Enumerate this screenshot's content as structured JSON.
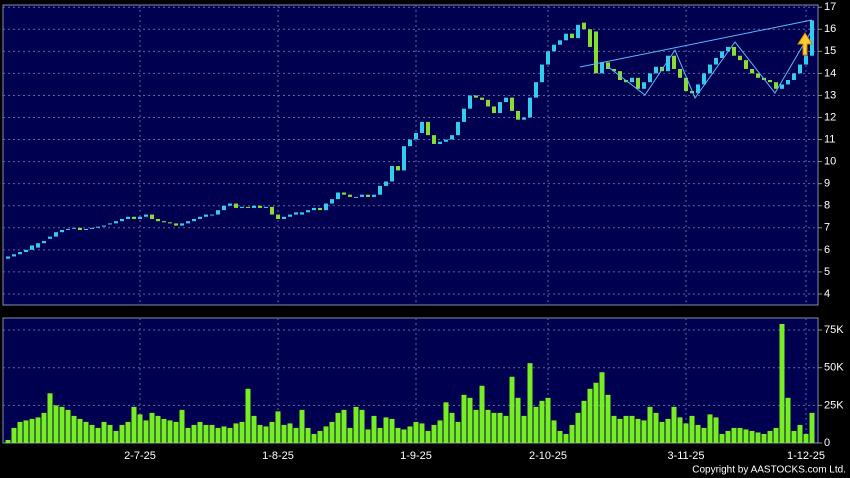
{
  "chart_data": [
    {
      "type": "candlestick",
      "categories": [
        null,
        null,
        null,
        null,
        null,
        null,
        null,
        null,
        null,
        null,
        null,
        null,
        null,
        null,
        null,
        null,
        null,
        null,
        null,
        null,
        null,
        null,
        "2-7-25",
        null,
        null,
        null,
        null,
        null,
        null,
        null,
        null,
        null,
        null,
        null,
        null,
        null,
        null,
        null,
        null,
        null,
        null,
        null,
        null,
        null,
        null,
        "1-8-25",
        null,
        null,
        null,
        null,
        null,
        null,
        null,
        null,
        null,
        null,
        null,
        null,
        null,
        null,
        null,
        null,
        null,
        null,
        null,
        null,
        null,
        null,
        "1-9-25",
        null,
        null,
        null,
        null,
        null,
        null,
        null,
        null,
        null,
        null,
        null,
        null,
        null,
        null,
        null,
        null,
        null,
        null,
        null,
        null,
        null,
        "2-10-25",
        null,
        null,
        null,
        null,
        null,
        null,
        null,
        null,
        null,
        null,
        null,
        null,
        null,
        null,
        null,
        null,
        null,
        null,
        null,
        null,
        null,
        null,
        "3-11-25",
        null,
        null,
        null,
        null,
        null,
        null,
        null,
        null,
        null,
        null,
        null,
        null,
        null,
        null,
        null,
        null,
        null,
        null,
        null,
        "1-12-25",
        null
      ],
      "open": [
        5.6,
        5.7,
        5.8,
        5.9,
        6.0,
        6.1,
        6.3,
        6.5,
        6.6,
        6.8,
        6.9,
        7.0,
        7.0,
        6.9,
        6.95,
        7.0,
        7.05,
        7.15,
        7.2,
        7.3,
        7.4,
        7.5,
        7.4,
        7.5,
        7.6,
        7.4,
        7.3,
        7.25,
        7.2,
        7.1,
        7.2,
        7.3,
        7.4,
        7.5,
        7.6,
        7.6,
        7.8,
        8.0,
        8.1,
        7.9,
        7.95,
        7.9,
        8.0,
        7.9,
        7.95,
        7.6,
        7.4,
        7.5,
        7.6,
        7.6,
        7.7,
        7.8,
        7.9,
        7.8,
        8.1,
        8.3,
        8.6,
        8.5,
        8.4,
        8.4,
        8.5,
        8.4,
        8.5,
        8.9,
        9.1,
        9.8,
        9.6,
        10.7,
        11.0,
        11.3,
        11.8,
        11.2,
        10.8,
        10.9,
        11.0,
        11.2,
        11.8,
        12.4,
        13.0,
        12.9,
        12.8,
        12.5,
        12.2,
        12.7,
        12.9,
        12.3,
        11.9,
        12.0,
        12.9,
        13.6,
        14.4,
        15.0,
        15.3,
        15.5,
        15.8,
        15.6,
        16.3,
        16.0,
        15.9,
        14.0,
        14.5,
        14.2,
        14.1,
        13.7,
        13.6,
        13.8,
        13.3,
        13.6,
        14.0,
        14.3,
        14.1,
        14.8,
        14.2,
        13.8,
        13.2,
        13.1,
        13.5,
        14.0,
        14.4,
        14.7,
        15.0,
        15.2,
        14.8,
        14.6,
        14.2,
        14.0,
        13.8,
        13.7,
        13.6,
        13.3,
        13.5,
        13.7,
        14.0,
        14.4,
        14.8
      ],
      "close": [
        5.7,
        5.8,
        5.9,
        6.0,
        6.2,
        6.3,
        6.4,
        6.6,
        6.8,
        6.9,
        6.95,
        7.0,
        6.9,
        6.95,
        7.0,
        7.05,
        7.1,
        7.2,
        7.3,
        7.4,
        7.5,
        7.4,
        7.5,
        7.6,
        7.4,
        7.3,
        7.25,
        7.2,
        7.1,
        7.2,
        7.3,
        7.4,
        7.5,
        7.6,
        7.6,
        7.8,
        8.0,
        8.1,
        7.9,
        7.95,
        7.9,
        8.0,
        7.9,
        7.95,
        7.6,
        7.4,
        7.5,
        7.6,
        7.7,
        7.7,
        7.8,
        7.9,
        7.8,
        8.1,
        8.3,
        8.6,
        8.5,
        8.4,
        8.4,
        8.5,
        8.4,
        8.5,
        8.9,
        9.1,
        9.8,
        9.6,
        10.7,
        11.0,
        11.3,
        11.8,
        11.2,
        10.8,
        10.9,
        11.0,
        11.2,
        11.8,
        12.4,
        13.0,
        12.9,
        12.8,
        12.5,
        12.2,
        12.7,
        12.9,
        12.3,
        11.9,
        12.0,
        12.9,
        13.6,
        14.4,
        15.0,
        15.3,
        15.5,
        15.8,
        15.6,
        16.2,
        16.0,
        15.2,
        14.0,
        14.5,
        14.2,
        14.1,
        13.7,
        13.6,
        13.8,
        13.3,
        13.6,
        14.0,
        14.3,
        14.1,
        14.8,
        14.2,
        13.8,
        13.2,
        13.1,
        13.5,
        14.0,
        14.4,
        14.7,
        15.0,
        15.2,
        14.8,
        14.6,
        14.2,
        14.0,
        13.8,
        13.7,
        13.6,
        13.3,
        13.5,
        13.7,
        14.0,
        14.4,
        14.8,
        16.4
      ],
      "up_color": "#33ccee",
      "down_color": "#88dd33",
      "ylim": [
        3.5,
        17.1
      ],
      "yticks": [
        4,
        5,
        6,
        7,
        8,
        9,
        10,
        11,
        12,
        13,
        14,
        15,
        16,
        17
      ],
      "grid": true
    },
    {
      "type": "bar",
      "values": [
        2000,
        10000,
        14000,
        15000,
        16000,
        17000,
        20000,
        33000,
        25000,
        24000,
        22000,
        18000,
        16000,
        14000,
        12000,
        10000,
        14000,
        12000,
        8000,
        12000,
        14000,
        24000,
        19000,
        15000,
        20000,
        18000,
        16000,
        15000,
        14000,
        22000,
        10000,
        12000,
        14000,
        12000,
        12000,
        10000,
        11000,
        10000,
        13000,
        14000,
        36000,
        18000,
        12000,
        11000,
        14000,
        21000,
        12000,
        13000,
        10000,
        22000,
        10000,
        6000,
        8000,
        11000,
        14000,
        20000,
        22000,
        10000,
        24000,
        22000,
        9000,
        18000,
        10000,
        17000,
        16000,
        10000,
        9000,
        11000,
        14000,
        13000,
        8000,
        12000,
        15000,
        27000,
        20000,
        14000,
        32000,
        30000,
        22000,
        38000,
        22000,
        20000,
        20000,
        18000,
        44000,
        30000,
        18000,
        53000,
        24000,
        28000,
        30000,
        15000,
        8000,
        6000,
        12000,
        20000,
        28000,
        36000,
        40000,
        47000,
        32000,
        18000,
        16000,
        18000,
        18000,
        16000,
        15000,
        24000,
        20000,
        14000,
        16000,
        24000,
        17000,
        13000,
        18000,
        12000,
        10000,
        19000,
        17000,
        6000,
        8000,
        10000,
        10000,
        9000,
        8000,
        7000,
        6000,
        8000,
        10000,
        79000,
        30000,
        8000,
        12000,
        6000,
        20000
      ],
      "color": "#77ee22",
      "ylim": [
        0,
        83000
      ],
      "yticks": [
        0,
        {
          "value": 25000,
          "label": "25K"
        },
        {
          "value": 50000,
          "label": "50K"
        },
        {
          "value": 75000,
          "label": "75K"
        }
      ],
      "grid": true
    }
  ],
  "footer": {
    "copyright": "Copyright by AASTOCKS.com Ltd."
  }
}
